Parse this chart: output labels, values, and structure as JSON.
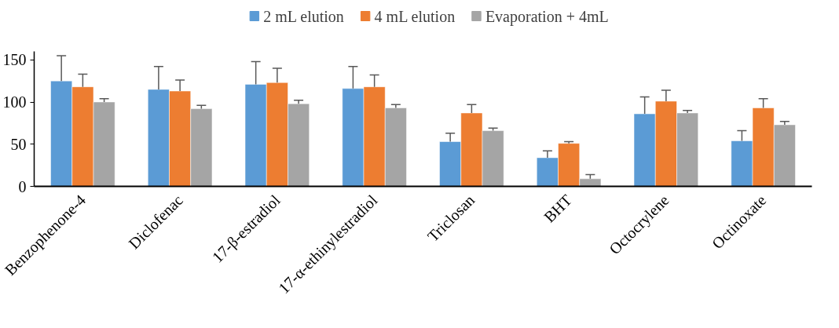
{
  "chart_data": {
    "type": "bar",
    "categories": [
      "Benzophenone-4",
      "Diclofenac",
      "17-β-estradiol",
      "17-α-ethinylestradiol",
      "Triclosan",
      "BHT",
      "Octocrylene",
      "Octinoxate"
    ],
    "series": [
      {
        "name": "2 mL elution",
        "color": "#5b9bd5",
        "values": [
          125,
          115,
          121,
          116,
          53,
          34,
          86,
          54
        ],
        "errors": [
          [
            125,
            155
          ],
          [
            115,
            142
          ],
          [
            121,
            148
          ],
          [
            116,
            142
          ],
          [
            53,
            63
          ],
          [
            34,
            42
          ],
          [
            86,
            106
          ],
          [
            54,
            66
          ]
        ]
      },
      {
        "name": "4 mL elution",
        "color": "#ed7d31",
        "values": [
          118,
          113,
          123,
          118,
          87,
          51,
          101,
          93
        ],
        "errors": [
          [
            118,
            133
          ],
          [
            113,
            126
          ],
          [
            123,
            140
          ],
          [
            118,
            132
          ],
          [
            87,
            97
          ],
          [
            51,
            53
          ],
          [
            101,
            114
          ],
          [
            93,
            104
          ]
        ]
      },
      {
        "name": "Evaporation + 4mL",
        "color": "#a5a5a5",
        "values": [
          100,
          92,
          98,
          93,
          66,
          9,
          87,
          73
        ],
        "errors": [
          [
            100,
            104
          ],
          [
            92,
            96
          ],
          [
            98,
            102
          ],
          [
            93,
            97
          ],
          [
            66,
            69
          ],
          [
            9,
            14
          ],
          [
            87,
            90
          ],
          [
            73,
            77
          ]
        ]
      }
    ],
    "ylim": [
      0,
      160
    ],
    "yticks": [
      0,
      50,
      100,
      150
    ],
    "grid": false,
    "legend": "top"
  }
}
